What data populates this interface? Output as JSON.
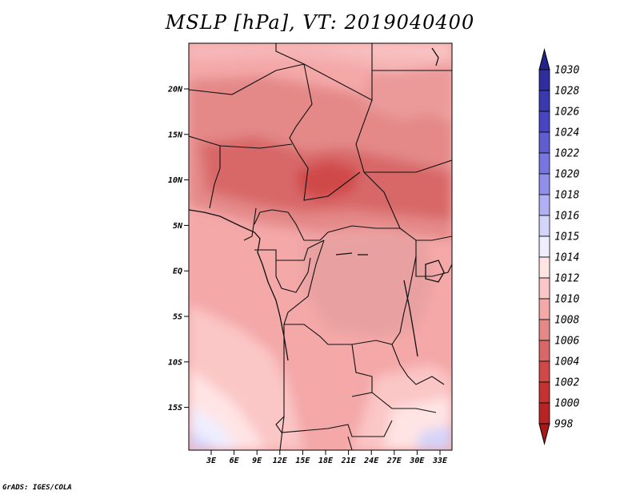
{
  "title": "MSLP [hPa], VT: 2019040400",
  "credit": "GrADS: IGES/COLA",
  "map": {
    "variable": "Mean sea level pressure",
    "units": "hPa",
    "region": "Central / East Africa",
    "lon_range": [
      0,
      34
    ],
    "lat_range": [
      -20,
      25
    ],
    "lat_ticks": [
      "20N",
      "15N",
      "10N",
      "5N",
      "EQ",
      "5S",
      "10S",
      "15S"
    ],
    "lon_ticks": [
      "3E",
      "6E",
      "9E",
      "12E",
      "15E",
      "18E",
      "21E",
      "24E",
      "27E",
      "30E",
      "33E"
    ]
  },
  "colorbar": {
    "labels": [
      "1030",
      "1028",
      "1026",
      "1024",
      "1022",
      "1020",
      "1018",
      "1016",
      "1015",
      "1014",
      "1012",
      "1010",
      "1008",
      "1006",
      "1004",
      "1002",
      "1000",
      "998"
    ],
    "colors": [
      "#23238e",
      "#2e2e9e",
      "#3a3ab0",
      "#4646c2",
      "#5e5ed2",
      "#7676e0",
      "#9090ea",
      "#b0b0f2",
      "#d4d4fa",
      "#eeeeff",
      "#ffe4e4",
      "#fbc6c6",
      "#f4a8a8",
      "#e48888",
      "#d86868",
      "#d04848",
      "#c43232",
      "#b82424",
      "#a81818"
    ]
  }
}
